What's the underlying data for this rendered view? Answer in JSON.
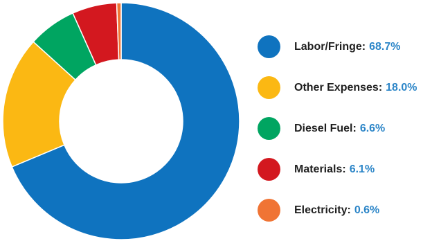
{
  "chart_data": {
    "type": "pie",
    "donut": true,
    "legend_position": "right",
    "categories": [
      "Labor/Fringe",
      "Other Expenses",
      "Diesel Fuel",
      "Materials",
      "Electricity"
    ],
    "values": [
      68.7,
      18.0,
      6.6,
      6.1,
      0.6
    ],
    "value_labels": [
      "68.7%",
      "18.0%",
      "6.6%",
      "6.1%",
      "0.6%"
    ],
    "colors": [
      "#0f73bf",
      "#fbb813",
      "#00a561",
      "#d3181f",
      "#f07434"
    ],
    "unit": "%"
  },
  "colors": {
    "label_text": "#1f1f1f",
    "value_text": "#2d86c8",
    "slice_border": "#ffffff"
  }
}
